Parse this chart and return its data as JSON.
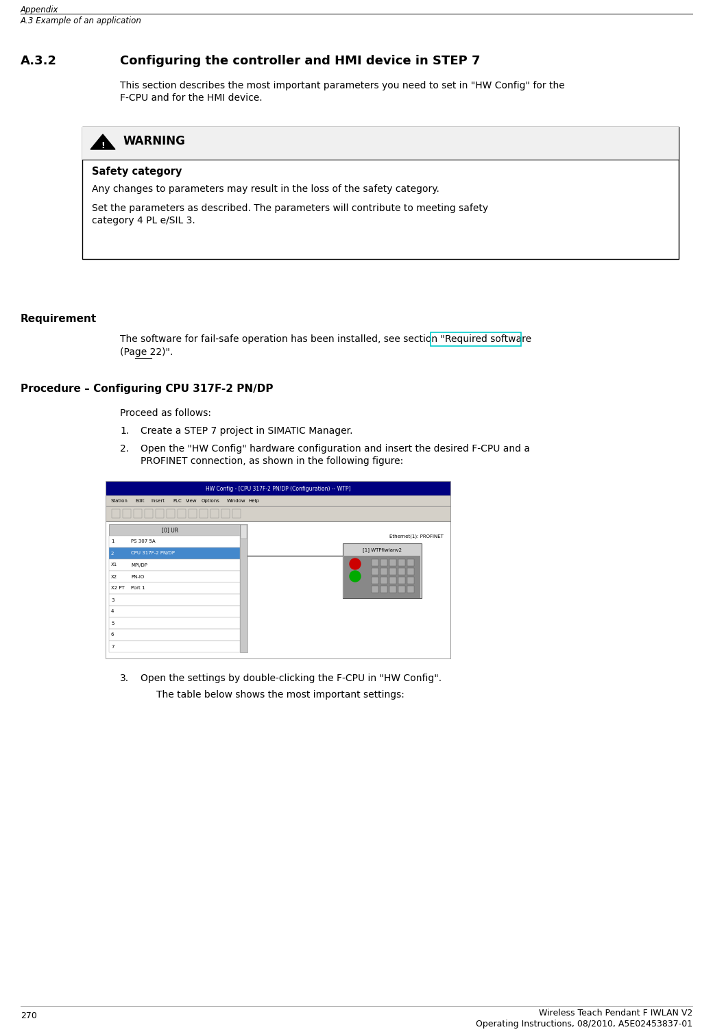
{
  "page_width": 10.4,
  "page_height": 15.09,
  "dpi": 100,
  "bg_color": "#ffffff",
  "header_line1": "Appendix",
  "header_line2": "A.3 Example of an application",
  "section_number": "A.3.2",
  "section_title": "Configuring the controller and HMI device in STEP 7",
  "intro_text_line1": "This section describes the most important parameters you need to set in \"HW Config\" for the",
  "intro_text_line2": "F-CPU and for the HMI device.",
  "warning_title": "WARNING",
  "warning_subtitle": "Safety category",
  "warning_line1": "Any changes to parameters may result in the loss of the safety category.",
  "warning_line2a": "Set the parameters as described. The parameters will contribute to meeting safety",
  "warning_line2b": "category 4 PL e/SIL 3.",
  "requirement_label": "Requirement",
  "req_text_before": "The software for fail-safe operation has been installed, see section \"",
  "req_text_link": "Required software",
  "req_text_after_line1": "",
  "req_text_line2": "(Page 22)\".",
  "procedure_label": "Procedure – Configuring CPU 317F-2 PN/DP",
  "proceed_text": "Proceed as follows:",
  "step1_num": "1.",
  "step1_text": "Create a STEP 7 project in SIMATIC Manager.",
  "step2_num": "2.",
  "step2_text_line1": "Open the \"HW Config\" hardware configuration and insert the desired F-CPU and a",
  "step2_text_line2": "PROFINET connection, as shown in the following figure:",
  "step3_num": "3.",
  "step3_text": "Open the settings by double-clicking the F-CPU in \"HW Config\".",
  "step3b_text": "The table below shows the most important settings:",
  "hw_title": "HW Config - [CPU 317F-2 PN/DP (Configuration) -- WTP]",
  "hw_menus": [
    "Station",
    "Edit",
    "Insert",
    "PLC",
    "View",
    "Options",
    "Window",
    "Help"
  ],
  "rack_header": "[0] UR",
  "rack_rows": [
    {
      "slot": "1",
      "name": "PS 307 5A",
      "highlight": false
    },
    {
      "slot": "2",
      "name": "CPU 317F-2 PN/DP",
      "highlight": true
    },
    {
      "slot": "X1",
      "name": "MPI/DP",
      "highlight": false
    },
    {
      "slot": "X2",
      "name": "PN-IO",
      "highlight": false
    },
    {
      "slot": "X2 PT",
      "name": "Port 1",
      "highlight": false
    },
    {
      "slot": "3",
      "name": "",
      "highlight": false
    },
    {
      "slot": "4",
      "name": "",
      "highlight": false
    },
    {
      "slot": "5",
      "name": "",
      "highlight": false
    },
    {
      "slot": "6",
      "name": "",
      "highlight": false
    },
    {
      "slot": "7",
      "name": "",
      "highlight": false
    }
  ],
  "ethernet_label": "Ethernet(1): PROFINET",
  "hmi_label": "[1] WTPfiwlanv2",
  "footer_page": "270",
  "footer_right1": "Wireless Teach Pendant F IWLAN V2",
  "footer_right2": "Operating Instructions, 08/2010, A5E02453837-01",
  "link_box_color": "#00cccc",
  "link_underline_color": "#000000",
  "highlight_row_color": "#4488cc",
  "toolbar_bg": "#d4d0c8",
  "title_bar_color": "#000080",
  "content_bg": "#ffffff"
}
